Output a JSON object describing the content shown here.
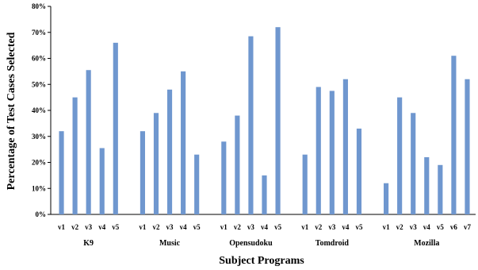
{
  "chart_data": {
    "type": "bar",
    "xlabel": "Subject Programs",
    "ylabel": "Percentage of Test Cases Selected",
    "ylim": [
      0,
      80
    ],
    "yticks": [
      "0%",
      "10%",
      "20%",
      "30%",
      "40%",
      "50%",
      "60%",
      "70%",
      "80%"
    ],
    "grid": false,
    "bar_color": "#6f97cf",
    "groups": [
      {
        "name": "K9",
        "categories": [
          "v1",
          "v2",
          "v3",
          "v4",
          "v5"
        ],
        "values": [
          32,
          45,
          55.5,
          25.5,
          66
        ]
      },
      {
        "name": "Music",
        "categories": [
          "v1",
          "v2",
          "v3",
          "v4",
          "v5"
        ],
        "values": [
          32,
          39,
          48,
          55,
          23
        ]
      },
      {
        "name": "Opensudoku",
        "categories": [
          "v1",
          "v2",
          "v3",
          "v4",
          "v5"
        ],
        "values": [
          28,
          38,
          68.5,
          15,
          72
        ]
      },
      {
        "name": "Tomdroid",
        "categories": [
          "v1",
          "v2",
          "v3",
          "v4",
          "v5"
        ],
        "values": [
          23,
          49,
          47.5,
          52,
          33
        ]
      },
      {
        "name": "Mozilla",
        "categories": [
          "v1",
          "v2",
          "v3",
          "v4",
          "v5",
          "v6",
          "v7"
        ],
        "values": [
          12,
          45,
          39,
          22,
          19,
          61,
          52
        ]
      }
    ]
  }
}
